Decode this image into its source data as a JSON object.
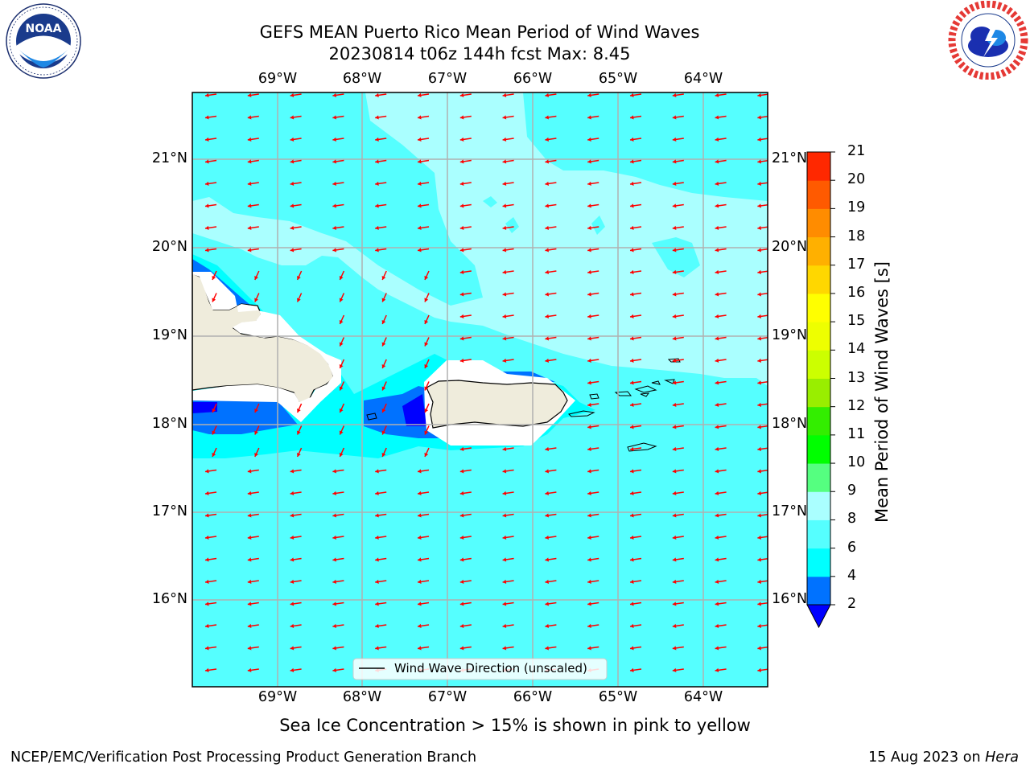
{
  "header": {
    "title_line1": "GEFS MEAN Puerto Rico Mean Period of Wind Waves",
    "title_line2": "20230814 t06z 144h fcst   Max: 8.45"
  },
  "logos": {
    "left": "noaa-logo",
    "right": "national-weather-service-logo"
  },
  "map": {
    "lon_labels": [
      "69°W",
      "68°W",
      "67°W",
      "66°W",
      "65°W",
      "64°W"
    ],
    "lat_labels": [
      "21°N",
      "20°N",
      "19°N",
      "18°N",
      "17°N",
      "16°N"
    ],
    "legend_label": "Wind Wave Direction (unscaled)",
    "arrow_color": "#ff0000",
    "land_color": "#efecdc",
    "ocean_colors": {
      "2_4": "#0072ff",
      "4_6": "#00ffff",
      "6_8": "#55ffff",
      "8_9": "#aaffff",
      "below_2": "#0000ff"
    }
  },
  "colorbar": {
    "label": "Mean Period of Wind Waves [s]",
    "ticks": [
      "2",
      "4",
      "6",
      "8",
      "9",
      "10",
      "11",
      "12",
      "13",
      "14",
      "15",
      "16",
      "17",
      "18",
      "19",
      "20",
      "21"
    ],
    "colors": [
      "#0072ff",
      "#00ffff",
      "#55ffff",
      "#aaffff",
      "#55ff80",
      "#00ff00",
      "#33ee00",
      "#99ee00",
      "#ccff00",
      "#eeff00",
      "#ffff00",
      "#ffd700",
      "#ffb000",
      "#ff8c00",
      "#ff5a00",
      "#ff2800"
    ],
    "under_color": "#0000ff"
  },
  "footer": {
    "subtitle": "Sea Ice Concentration > 15% is shown in pink to yellow",
    "left": "NCEP/EMC/Verification Post Processing Product Generation Branch",
    "right_date": "15 Aug 2023 on",
    "right_host": "Hera"
  }
}
